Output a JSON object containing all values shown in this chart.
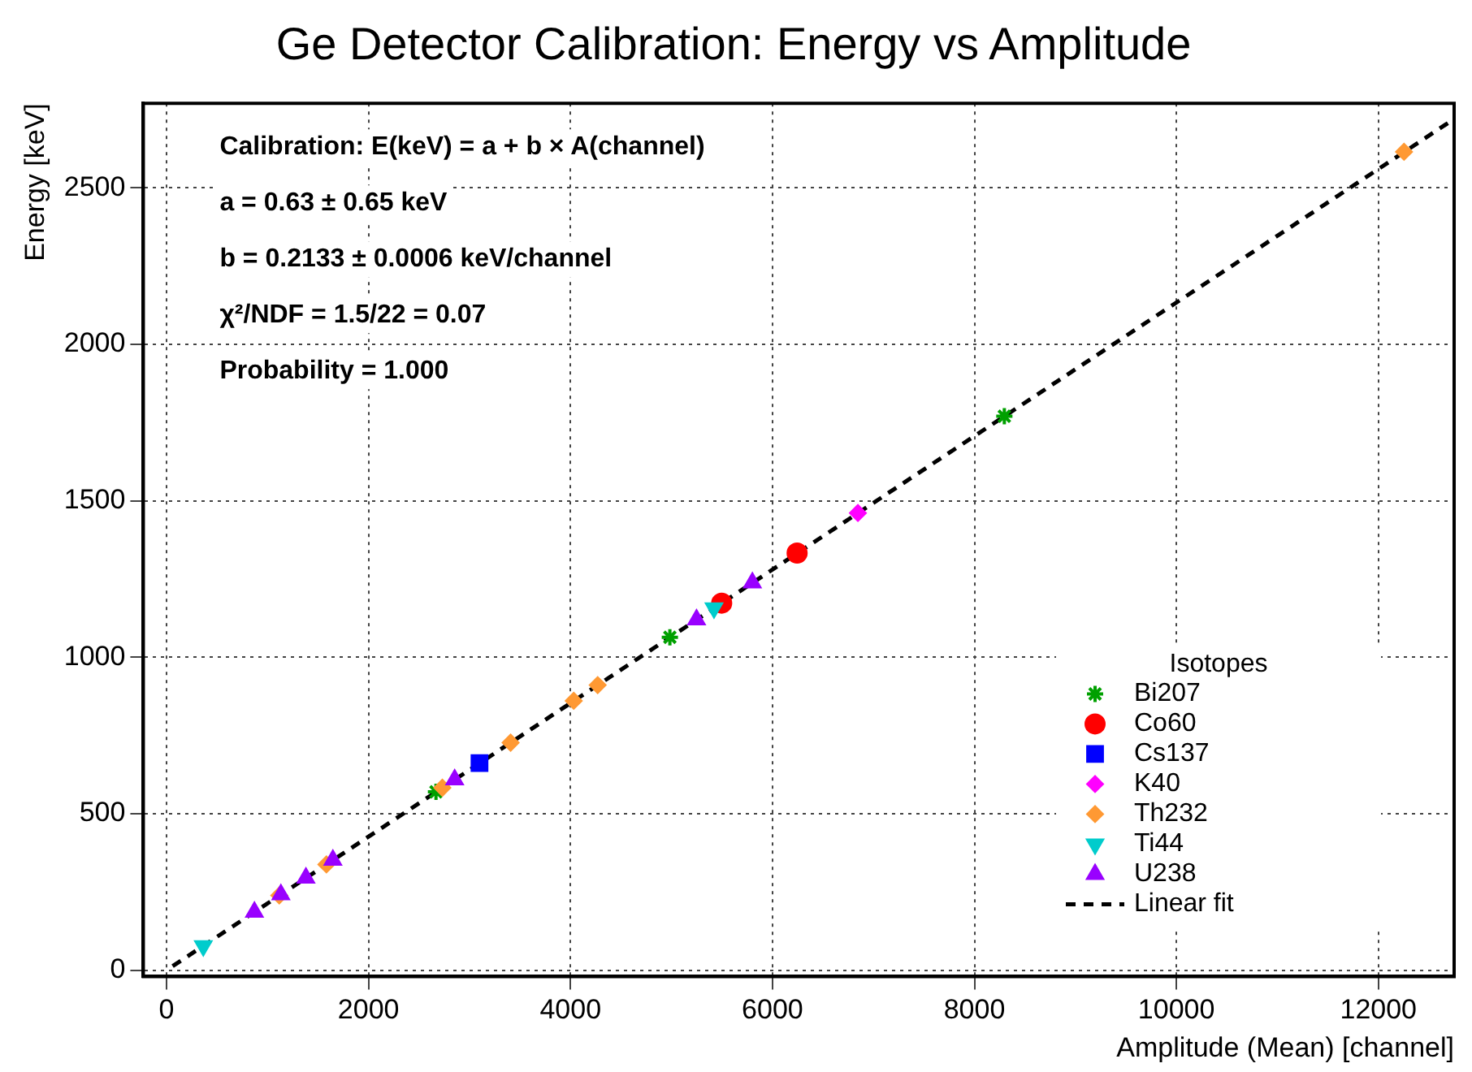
{
  "chart_data": {
    "type": "scatter",
    "title": "Ge Detector Calibration: Energy vs Amplitude",
    "xlabel": "Amplitude (Mean) [channel]",
    "ylabel": "Energy [keV]",
    "legend_title": "Isotopes",
    "xlim": [
      -230,
      12750
    ],
    "xticks": [
      0,
      2000,
      4000,
      6000,
      8000,
      10000,
      12000
    ],
    "ylim": [
      -20,
      2770
    ],
    "yticks": [
      0,
      500,
      1000,
      1500,
      2000,
      2500
    ],
    "grid": true,
    "legend": "bottom right",
    "annotations": [
      "Calibration: E(keV) = a + b × A(channel)",
      "a = 0.63 ± 0.65 keV",
      "b = 0.2133 ± 0.0006 keV/channel",
      "χ²/NDF = 1.5/22 = 0.07",
      "Probability = 1.000"
    ],
    "series": [
      {
        "name": "Bi207",
        "color": "#00a000",
        "marker": "cross",
        "x": [
          2668,
          4984,
          8296
        ],
        "values": [
          570,
          1064,
          1770
        ]
      },
      {
        "name": "Co60",
        "color": "#ff0000",
        "marker": "circle",
        "x": [
          5497,
          6244
        ],
        "values": [
          1173,
          1333
        ]
      },
      {
        "name": "Cs137",
        "color": "#0000ff",
        "marker": "square",
        "x": [
          3099
        ],
        "values": [
          662
        ]
      },
      {
        "name": "K40",
        "color": "#ff00ff",
        "marker": "diamond",
        "x": [
          6846
        ],
        "values": [
          1461
        ]
      },
      {
        "name": "Th232",
        "color": "#ff9933",
        "marker": "diamond",
        "x": [
          1116,
          1583,
          2731,
          3407,
          4032,
          4269,
          12254
        ],
        "values": [
          239,
          338,
          583,
          727,
          861,
          911,
          2615
        ]
      },
      {
        "name": "Ti44",
        "color": "#00cccc",
        "marker": "triangle-down",
        "x": [
          364,
          5421
        ],
        "values": [
          78,
          1157
        ]
      },
      {
        "name": "U238",
        "color": "#9900ff",
        "marker": "triangle",
        "x": [
          870,
          1132,
          1380,
          1647,
          2853,
          5248,
          5801
        ],
        "values": [
          186,
          242,
          295,
          352,
          609,
          1120,
          1238
        ]
      },
      {
        "name": "Linear fit",
        "type": "line",
        "color": "#000000",
        "line_style": "dashed",
        "marker": "none",
        "x": [
          60,
          12750
        ],
        "values": [
          13,
          2720
        ]
      }
    ]
  }
}
